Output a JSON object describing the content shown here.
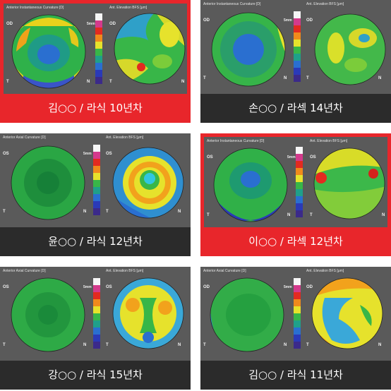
{
  "cards": [
    {
      "caption": "김○○ / 라식 10년차",
      "left_title": "Anterior Instantaneous Curvature [D]",
      "right_title": "Ant. Elevation BFS [μm]",
      "left_marks": {
        "a": "OD",
        "b": "T",
        "c": "N",
        "d": "5mm"
      },
      "right_marks": {
        "a": "OD",
        "b": "T",
        "c": "N"
      }
    },
    {
      "caption": "손○○ / 라섹 14년차",
      "left_title": "Anterior Instantaneous Curvature [D]",
      "right_title": "Ant. Elevation BFS [μm]",
      "left_marks": {
        "a": "OD",
        "b": "T",
        "c": "N",
        "d": "5mm"
      },
      "right_marks": {
        "a": "OD",
        "b": "T",
        "c": "N"
      }
    },
    {
      "caption": "윤○○ / 라식 12년차",
      "left_title": "Anterior Axial Curvature [D]",
      "right_title": "Ant. Elevation BFS [μm]",
      "left_marks": {
        "a": "OS",
        "b": "T",
        "c": "N",
        "d": "5mm"
      },
      "right_marks": {
        "a": "OS",
        "b": "T",
        "c": "N"
      }
    },
    {
      "caption": "이○○ / 라섹 12년차",
      "left_title": "Anterior Instantaneous Curvature [D]",
      "right_title": "Ant. Elevation BFS [μm]",
      "left_marks": {
        "a": "OS",
        "b": "T",
        "c": "N",
        "d": "5mm"
      },
      "right_marks": {
        "a": "OS",
        "b": "T",
        "c": "N"
      }
    },
    {
      "caption": "강○○ / 라식 15년차",
      "left_title": "Anterior Axial Curvature [D]",
      "right_title": "Ant. Elevation BFS [μm]",
      "left_marks": {
        "a": "OS",
        "b": "T",
        "c": "N",
        "d": "5mm"
      },
      "right_marks": {
        "a": "OS",
        "b": "T",
        "c": "N"
      }
    },
    {
      "caption": "김○○ / 라식 11년차",
      "left_title": "Anterior Axial Curvature [D]",
      "right_title": "Ant. Elevation BFS [μm]",
      "left_marks": {
        "a": "OD",
        "b": "T",
        "c": "N",
        "d": "5mm"
      },
      "right_marks": {
        "a": "OD",
        "b": "T",
        "c": "N"
      }
    }
  ],
  "colors": {
    "highlight": "#e8262b",
    "caption_bg": "#2b2b2b",
    "panel_bg": "#5a5a5a"
  }
}
